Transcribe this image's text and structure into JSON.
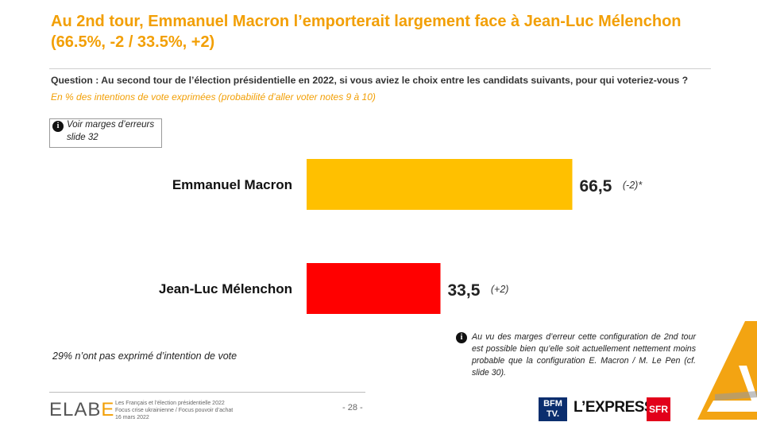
{
  "header": {
    "title": "Au 2nd tour, Emmanuel Macron l’emporterait largement face à Jean-Luc Mélenchon (66.5%, -2 / 33.5%, +2)",
    "question": "Question : Au second tour de l’élection présidentielle en 2022, si vous aviez le choix entre les candidats suivants, pour qui voteriez-vous ?",
    "subquestion": "En % des intentions de vote exprimées (probabilité d’aller voter notes 9 à 10)"
  },
  "note_box": {
    "icon": "info-icon",
    "line1": "Voir marges d’erreurs",
    "line2": "slide 32"
  },
  "chart_data": {
    "type": "bar",
    "orientation": "horizontal",
    "categories": [
      "Emmanuel Macron",
      "Jean-Luc Mélenchon"
    ],
    "values": [
      66.5,
      33.5
    ],
    "value_labels": [
      "66,5",
      "33,5"
    ],
    "changes": [
      "(-2)*",
      "(+2)"
    ],
    "colors": [
      "#FFC000",
      "#FF0000"
    ],
    "xlim": [
      0,
      100
    ]
  },
  "footnote_left": "29% n’ont pas exprimé d’intention de vote",
  "footnote_right": "Au vu des marges d’erreur cette configuration de 2nd tour est possible bien qu’elle soit actuellement nettement moins probable que la configuration E. Macron / M. Le Pen (cf. slide 30).",
  "footer": {
    "brand_prefix": "ELAB",
    "brand_suffix": "E",
    "source_line1": "Les Français et l’élection présidentielle 2022",
    "source_line2": "Focus crise ukrainienne / Focus pouvoir d’achat",
    "source_line3": "16 mars 2022",
    "page": "- 28 -",
    "logos": {
      "bfm": "BFM TV.",
      "lexpress": "L’EXPRESS",
      "sfr": "SFR"
    }
  }
}
